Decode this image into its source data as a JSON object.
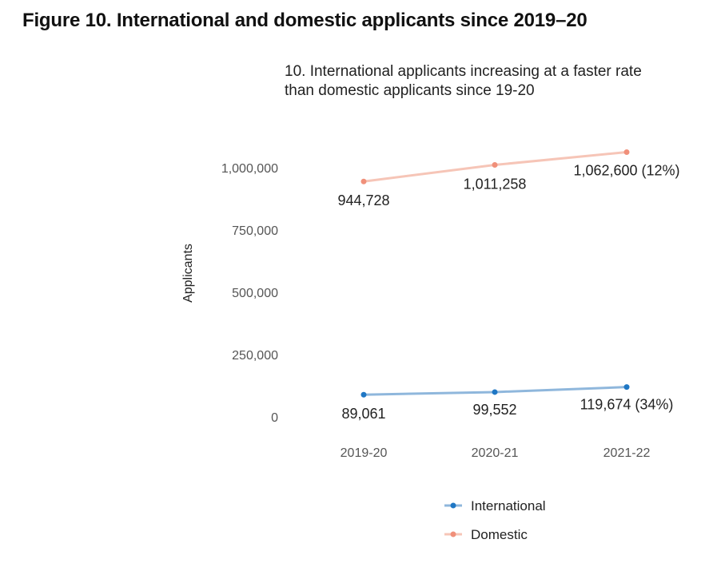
{
  "figure_title": "Figure 10. International and domestic applicants since 2019–20",
  "chart_data": {
    "type": "line",
    "title": "10. International applicants increasing at a faster rate\n than domestic applicants since 19-20",
    "xlabel": "",
    "ylabel": "Applicants",
    "categories": [
      "2019-20",
      "2020-21",
      "2021-22"
    ],
    "ylim": [
      0,
      1100000
    ],
    "yticks": [
      0,
      250000,
      500000,
      750000,
      1000000
    ],
    "ytick_labels": [
      "0",
      "250,000",
      "500,000",
      "750,000",
      "1,000,000"
    ],
    "grid": false,
    "legend_position": "bottom",
    "series": [
      {
        "name": "International",
        "color": "#1f77c4",
        "line_color": "#8fb7dc",
        "values": [
          89061,
          99552,
          119674
        ],
        "labels": [
          "89,061",
          "99,552",
          "119,674 (34%)"
        ]
      },
      {
        "name": "Domestic",
        "color": "#f0907a",
        "line_color": "#f6c5b7",
        "values": [
          944728,
          1011258,
          1062600
        ],
        "labels": [
          "944,728",
          "1,011,258",
          "1,062,600 (12%)"
        ]
      }
    ]
  }
}
